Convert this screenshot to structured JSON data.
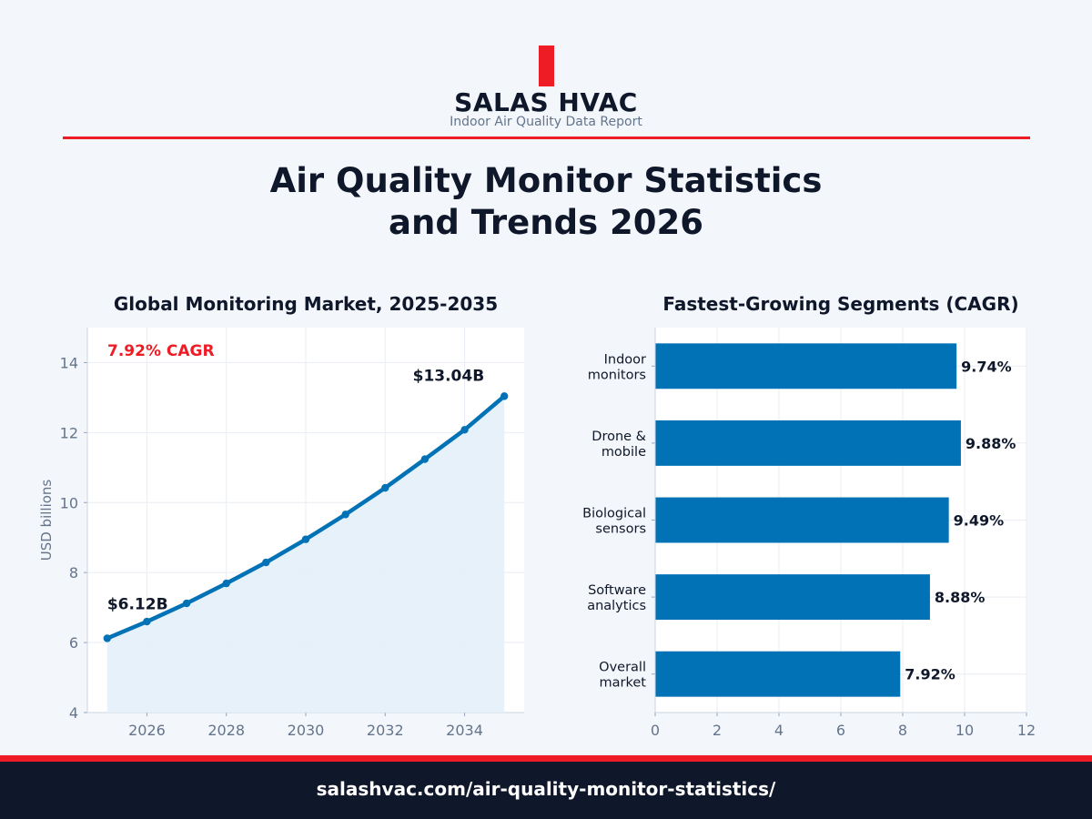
{
  "brand": {
    "name": "SALAS HVAC",
    "subtitle": "Indoor Air Quality Data Report"
  },
  "title": {
    "line1": "Air Quality Monitor Statistics",
    "line2": "and Trends 2026"
  },
  "colors": {
    "accent": "#ee1c25",
    "series": "#0172b5",
    "area": "#e4f0f8",
    "footer": "#0f172a",
    "ink": "#0f172a",
    "muted": "#64748b"
  },
  "footer": {
    "url": "salashvac.com/air-quality-monitor-statistics/"
  },
  "chart_data": [
    {
      "type": "area",
      "title": "Global Monitoring Market, 2025-2035",
      "xlabel": "",
      "ylabel": "USD billions",
      "x": [
        2025,
        2026,
        2027,
        2028,
        2029,
        2030,
        2031,
        2032,
        2033,
        2034,
        2035
      ],
      "values": [
        6.12,
        6.6,
        7.12,
        7.69,
        8.29,
        8.95,
        9.66,
        10.42,
        11.24,
        12.08,
        13.04
      ],
      "xticks": [
        2026,
        2028,
        2030,
        2032,
        2034
      ],
      "yticks": [
        4,
        6,
        8,
        10,
        12,
        14
      ],
      "xlim": [
        2024.5,
        2035.5
      ],
      "ylim": [
        4,
        15
      ],
      "grid": true,
      "annotations": [
        {
          "text": "7.92% CAGR",
          "style": "accent"
        },
        {
          "text": "$6.12B",
          "at": "first"
        },
        {
          "text": "$13.04B",
          "at": "last"
        }
      ]
    },
    {
      "type": "bar",
      "orientation": "horizontal",
      "title": "Fastest-Growing Segments (CAGR)",
      "xlabel": "",
      "ylabel": "",
      "categories": [
        [
          "Indoor",
          "monitors"
        ],
        [
          "Drone &",
          "mobile"
        ],
        [
          "Biological",
          "sensors"
        ],
        [
          "Software",
          "analytics"
        ],
        [
          "Overall",
          "market"
        ]
      ],
      "values": [
        9.74,
        9.88,
        9.49,
        8.88,
        7.92
      ],
      "value_labels": [
        "9.74%",
        "9.88%",
        "9.49%",
        "8.88%",
        "7.92%"
      ],
      "xticks": [
        0,
        2,
        4,
        6,
        8,
        10,
        12
      ],
      "xlim": [
        0,
        12
      ],
      "grid": true
    }
  ]
}
